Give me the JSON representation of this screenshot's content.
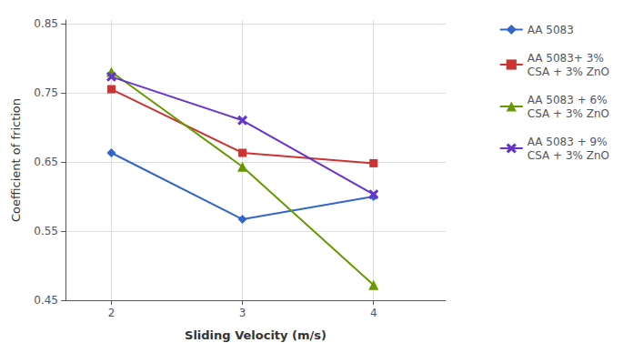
{
  "chart_data": {
    "type": "line",
    "x": [
      2,
      3,
      4
    ],
    "series": [
      {
        "name": "AA 5083",
        "values": [
          0.663,
          0.567,
          0.6
        ],
        "color": "#3366CC",
        "marker": "diamond"
      },
      {
        "name": "AA 5083+ 3%\nCSA + 3% ZnO",
        "values": [
          0.755,
          0.663,
          0.648
        ],
        "color": "#CC3333",
        "marker": "square"
      },
      {
        "name": "AA 5083 + 6%\nCSA + 3% ZnO",
        "values": [
          0.78,
          0.643,
          0.472
        ],
        "color": "#669900",
        "marker": "triangle"
      },
      {
        "name": "AA 5083 + 9%\nCSA + 3% ZnO",
        "values": [
          0.773,
          0.71,
          0.603
        ],
        "color": "#6633CC",
        "marker": "x"
      }
    ],
    "x_label": "Sliding Velocity (m/s)",
    "y_label": "Coefficient of friction",
    "xlim": [
      1.65,
      4.55
    ],
    "xticks": [
      2,
      3,
      4
    ],
    "ylim": [
      0.45,
      0.855
    ],
    "yticks": [
      0.45,
      0.55,
      0.65,
      0.75,
      0.85
    ],
    "grid": true,
    "legend": "right"
  }
}
